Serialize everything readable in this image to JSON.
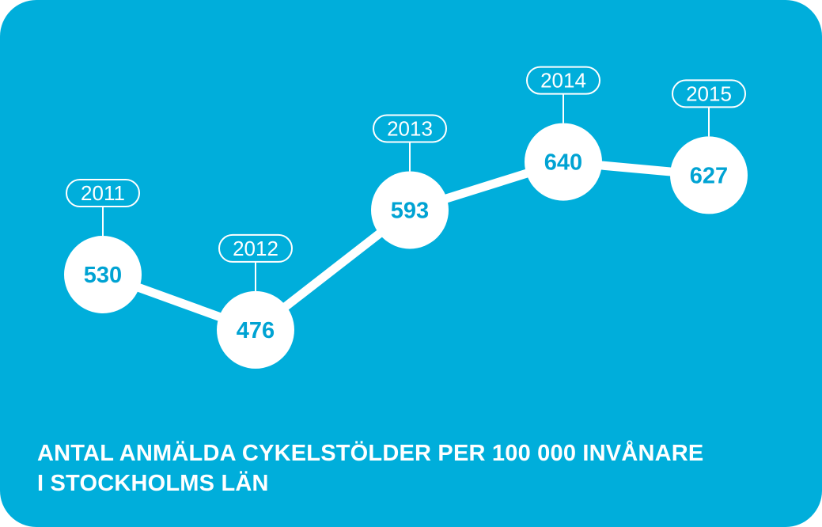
{
  "colors": {
    "background": "#00aedb",
    "line": "#ffffff",
    "value_text": "#00a3d3"
  },
  "chart_data": {
    "type": "line",
    "categories": [
      "2011",
      "2012",
      "2013",
      "2014",
      "2015"
    ],
    "values": [
      530,
      476,
      593,
      640,
      627
    ],
    "data_labels": [
      "530",
      "476",
      "593",
      "640",
      "627"
    ],
    "title_lines": [
      "ANTAL ANMÄLDA CYKELSTÖLDER PER 100 000 INVÅNARE",
      "I STOCKHOLMS LÄN"
    ],
    "grid": false,
    "legend": "none"
  }
}
